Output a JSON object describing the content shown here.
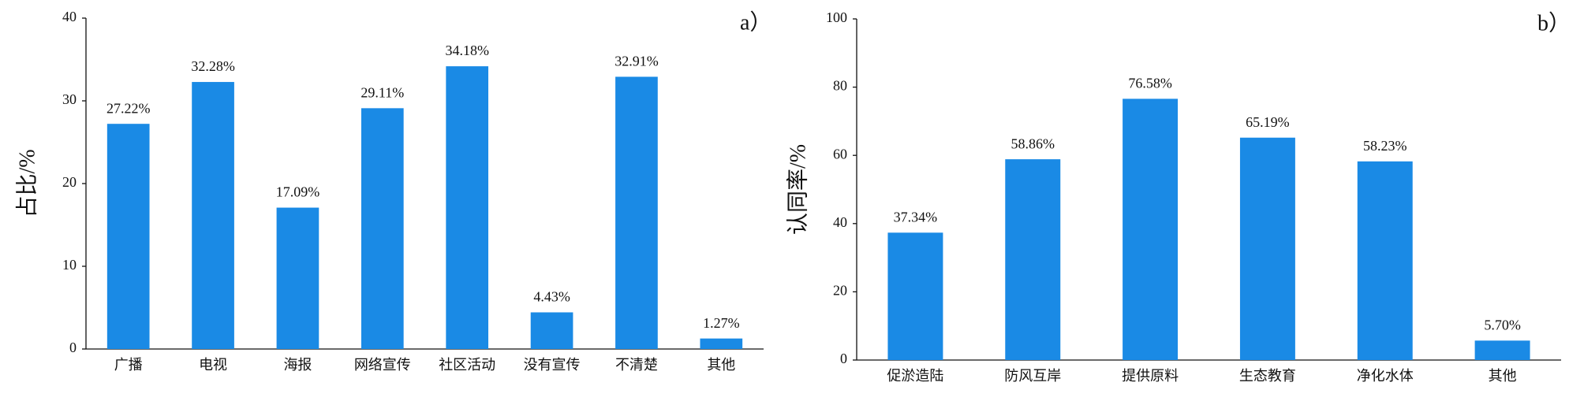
{
  "chart_data": [
    {
      "type": "bar",
      "panel_label": "a）",
      "ylabel": "占比/%",
      "categories": [
        "广播",
        "电视",
        "海报",
        "网络宣传",
        "社区活动",
        "没有宣传",
        "不清楚",
        "其他"
      ],
      "values": [
        27.22,
        32.28,
        17.09,
        29.11,
        34.18,
        4.43,
        32.91,
        1.27
      ],
      "value_labels": [
        "27.22%",
        "32.28%",
        "17.09%",
        "29.11%",
        "34.18%",
        "4.43%",
        "32.91%",
        "1.27%"
      ],
      "color": "#1a8ae5",
      "ylim": [
        0,
        40
      ],
      "yticks": [
        0,
        10,
        20,
        30,
        40
      ]
    },
    {
      "type": "bar",
      "panel_label": "b）",
      "ylabel": "认同率/%",
      "categories": [
        "促淤造陆",
        "防风互岸",
        "提供原料",
        "生态教育",
        "净化水体",
        "其他"
      ],
      "values": [
        37.34,
        58.86,
        76.58,
        65.19,
        58.23,
        5.7
      ],
      "value_labels": [
        "37.34%",
        "58.86%",
        "76.58%",
        "65.19%",
        "58.23%",
        "5.70%"
      ],
      "color": "#1a8ae5",
      "ylim": [
        0,
        100
      ],
      "yticks": [
        0,
        20,
        40,
        60,
        80,
        100
      ]
    }
  ]
}
